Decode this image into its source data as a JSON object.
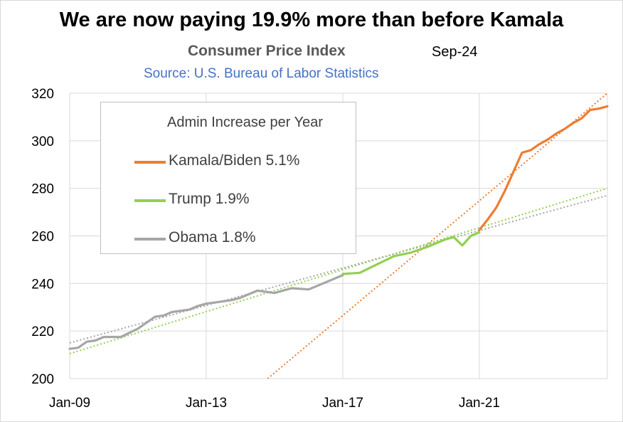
{
  "header": {
    "title": "We are now paying 19.9% more than before Kamala",
    "subtitle": "Consumer Price Index",
    "date": "Sep-24",
    "source": "Source: U.S. Bureau of Labor Statistics"
  },
  "legend": {
    "title": "Admin Increase per Year",
    "items": [
      {
        "label": "Kamala/Biden 5.1%",
        "color": "#ed7d31"
      },
      {
        "label": "Trump 1.9%",
        "color": "#92d050"
      },
      {
        "label": "Obama 1.8%",
        "color": "#a6a6a6"
      }
    ]
  },
  "chart_data": {
    "type": "line",
    "title": "Consumer Price Index",
    "x_unit": "years",
    "xlim": [
      2009.0,
      2024.75
    ],
    "ylim": [
      200,
      320
    ],
    "y_ticks": [
      200,
      220,
      240,
      260,
      280,
      300,
      320
    ],
    "x_ticks": [
      {
        "value": 2009.0,
        "label": "Jan-09"
      },
      {
        "value": 2013.0,
        "label": "Jan-13"
      },
      {
        "value": 2017.0,
        "label": "Jan-17"
      },
      {
        "value": 2021.0,
        "label": "Jan-21"
      }
    ],
    "grid": true,
    "legend_position": "top-left",
    "series": [
      {
        "name": "Obama 1.8%",
        "color": "#a6a6a6",
        "x": [
          2009.0,
          2009.25,
          2009.5,
          2009.75,
          2010.0,
          2010.5,
          2011.0,
          2011.5,
          2011.75,
          2012.0,
          2012.5,
          2012.75,
          2013.0,
          2013.5,
          2013.75,
          2014.0,
          2014.5,
          2015.0,
          2015.5,
          2016.0,
          2016.5,
          2017.0
        ],
        "y": [
          212.5,
          213.0,
          215.5,
          216.0,
          217.5,
          217.5,
          221.0,
          226.0,
          226.5,
          228.0,
          229.0,
          230.5,
          231.5,
          232.5,
          233.0,
          234.0,
          237.0,
          236.0,
          238.0,
          237.5,
          240.5,
          243.5
        ]
      },
      {
        "name": "Trump 1.9%",
        "color": "#92d050",
        "x": [
          2017.0,
          2017.5,
          2018.0,
          2018.5,
          2019.0,
          2019.5,
          2020.0,
          2020.25,
          2020.5,
          2020.75,
          2021.0
        ],
        "y": [
          244.0,
          244.5,
          248.0,
          251.5,
          253.0,
          255.5,
          258.5,
          259.5,
          256.0,
          260.0,
          261.5
        ]
      },
      {
        "name": "Kamala/Biden 5.1%",
        "color": "#ed7d31",
        "x": [
          2021.0,
          2021.25,
          2021.5,
          2021.75,
          2022.0,
          2022.25,
          2022.5,
          2022.75,
          2023.0,
          2023.25,
          2023.5,
          2023.75,
          2024.0,
          2024.25,
          2024.5,
          2024.75
        ],
        "y": [
          262.5,
          267.0,
          272.0,
          279.0,
          287.0,
          295.0,
          296.0,
          298.5,
          300.5,
          303.0,
          305.0,
          307.5,
          309.5,
          313.0,
          313.5,
          314.5
        ]
      }
    ],
    "trendlines": [
      {
        "series": "Kamala/Biden 5.1%",
        "color": "#ed7d31",
        "x": [
          2014.8,
          2024.75
        ],
        "y": [
          200,
          320
        ]
      },
      {
        "series": "Trump 1.9%",
        "color": "#92d050",
        "x": [
          2009.0,
          2024.75
        ],
        "y": [
          210.5,
          280.0
        ]
      },
      {
        "series": "Obama 1.8%",
        "color": "#a6a6a6",
        "x": [
          2009.0,
          2024.75
        ],
        "y": [
          215.0,
          277.0
        ]
      }
    ]
  }
}
